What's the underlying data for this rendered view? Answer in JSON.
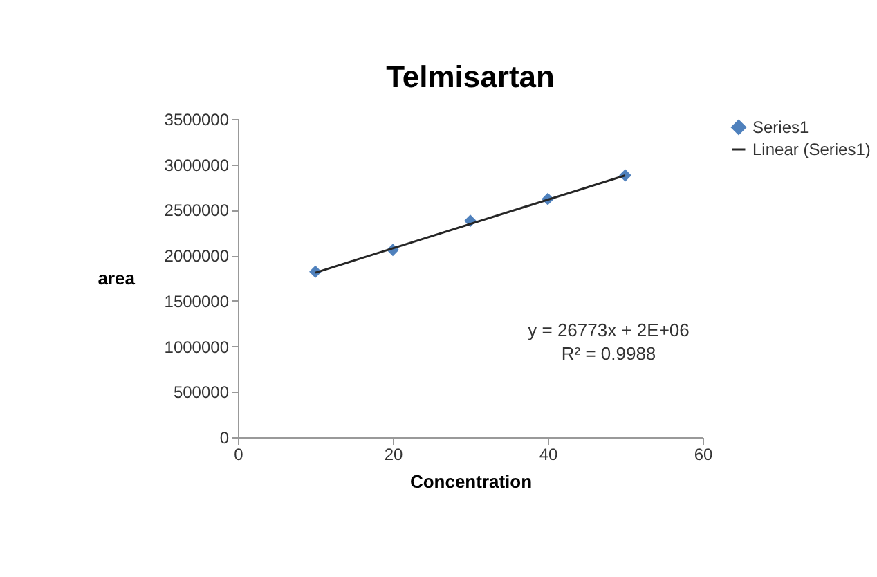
{
  "chart_data": {
    "type": "scatter",
    "title": "Telmisartan",
    "xlabel": "Concentration",
    "ylabel": "area",
    "xlim": [
      0,
      60
    ],
    "xticks": [
      0,
      20,
      40,
      60
    ],
    "ylim": [
      0,
      3500000
    ],
    "yticks": [
      0,
      500000,
      1000000,
      1500000,
      2000000,
      2500000,
      3000000,
      3500000
    ],
    "grid": false,
    "legend": "right",
    "annotations": [
      "y = 26773x + 2E+06",
      "R² = 0.9988"
    ],
    "series": [
      {
        "name": "Series1",
        "color": "#4f81bd",
        "marker": "diamond",
        "x": [
          10,
          20,
          30,
          40,
          50
        ],
        "values": [
          1820000,
          2060000,
          2380000,
          2620000,
          2880000
        ]
      },
      {
        "name": "Linear (Series1)",
        "type": "line",
        "marker": "none",
        "color": "#262626",
        "x": [
          10,
          50
        ],
        "values": [
          1810000,
          2880000
        ]
      }
    ]
  }
}
